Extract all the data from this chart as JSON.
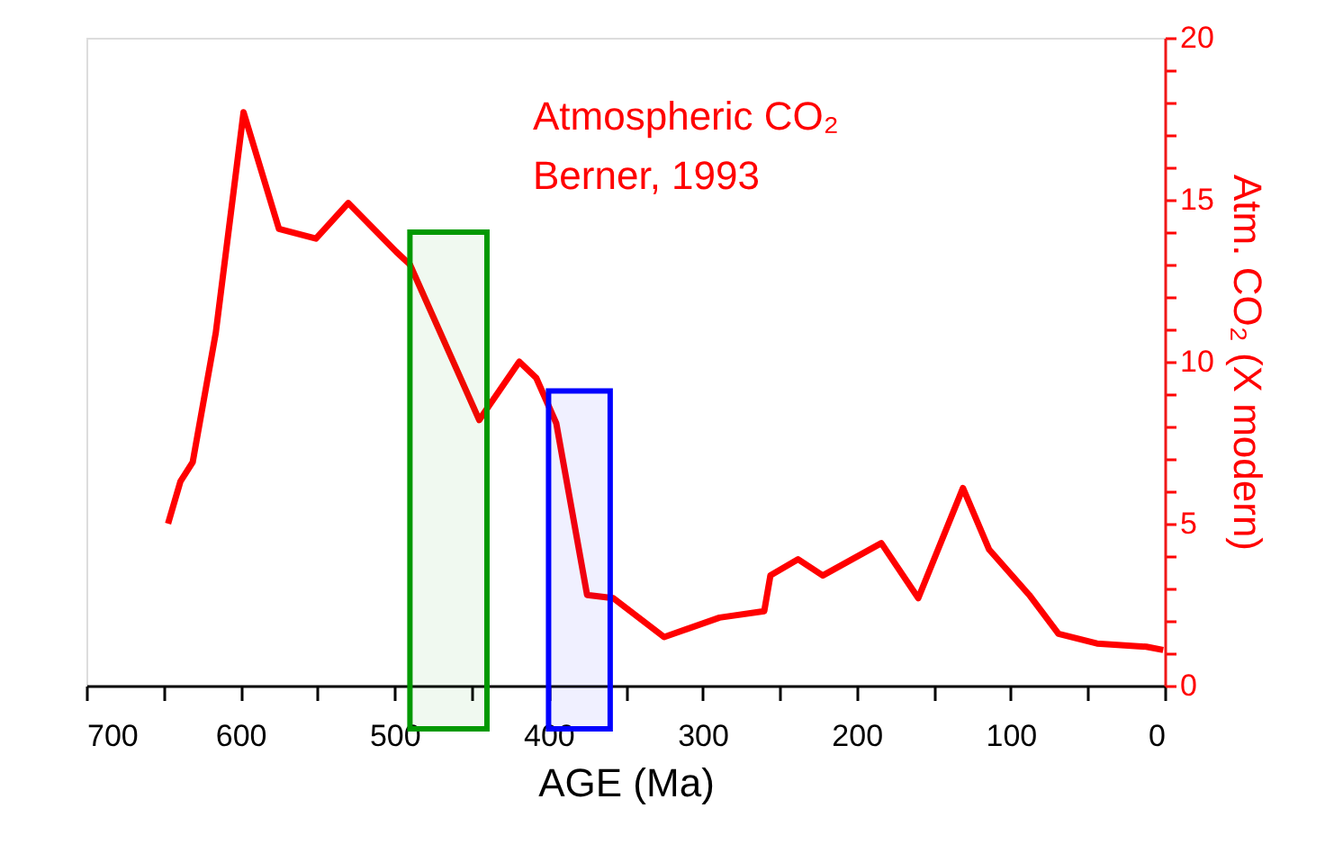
{
  "chart_data": {
    "type": "line",
    "xlabel": "AGE (Ma)",
    "ylabel": "Atm. CO₂ (X modern)",
    "annotations": [
      "Atmospheric CO₂",
      "Berner, 1993"
    ],
    "x": [
      647,
      639,
      631,
      616,
      598,
      575,
      551,
      530,
      499,
      490,
      445,
      419,
      408,
      395,
      375,
      358,
      325,
      289,
      260,
      256,
      238,
      222,
      184,
      160,
      131,
      114,
      88,
      69,
      44,
      12,
      1
    ],
    "series": [
      {
        "color": "#ff0000",
        "values": [
          5.0,
          6.3,
          6.9,
          10.9,
          17.7,
          14.1,
          13.8,
          14.9,
          13.4,
          13.0,
          8.2,
          10.0,
          9.5,
          8.1,
          2.8,
          2.7,
          1.5,
          2.1,
          2.3,
          3.4,
          3.9,
          3.4,
          4.4,
          2.7,
          6.1,
          4.2,
          2.8,
          1.6,
          1.3,
          1.2,
          1.1
        ]
      }
    ],
    "xlim": [
      700,
      0
    ],
    "xticks": [
      700,
      {
        "value": 650,
        "label": null
      },
      600,
      {
        "value": 550,
        "label": null
      },
      500,
      {
        "value": 450,
        "label": null
      },
      400,
      {
        "value": 350,
        "label": null
      },
      300,
      {
        "value": 250,
        "label": null
      },
      200,
      {
        "value": 150,
        "label": null
      },
      100,
      {
        "value": 50,
        "label": null
      },
      0
    ],
    "ylim": [
      0,
      20
    ],
    "yticks": [
      0,
      {
        "value": 1,
        "label": null
      },
      {
        "value": 2,
        "label": null
      },
      {
        "value": 3,
        "label": null
      },
      {
        "value": 4,
        "label": null
      },
      5,
      {
        "value": 6,
        "label": null
      },
      {
        "value": 7,
        "label": null
      },
      {
        "value": 8,
        "label": null
      },
      {
        "value": 9,
        "label": null
      },
      10,
      {
        "value": 11,
        "label": null
      },
      {
        "value": 12,
        "label": null
      },
      {
        "value": 13,
        "label": null
      },
      {
        "value": 14,
        "label": null
      },
      15,
      {
        "value": 16,
        "label": null
      },
      {
        "value": 17,
        "label": null
      },
      {
        "value": 18,
        "label": null
      },
      {
        "value": 19,
        "label": null
      },
      20
    ],
    "bands": [
      {
        "axis": "x",
        "from": 490,
        "to": 440,
        "color": "#009900"
      },
      {
        "axis": "x",
        "from": 400,
        "to": 360,
        "color": "#0000ff"
      }
    ],
    "grid": false,
    "marker": "none",
    "line_style": "solid"
  }
}
